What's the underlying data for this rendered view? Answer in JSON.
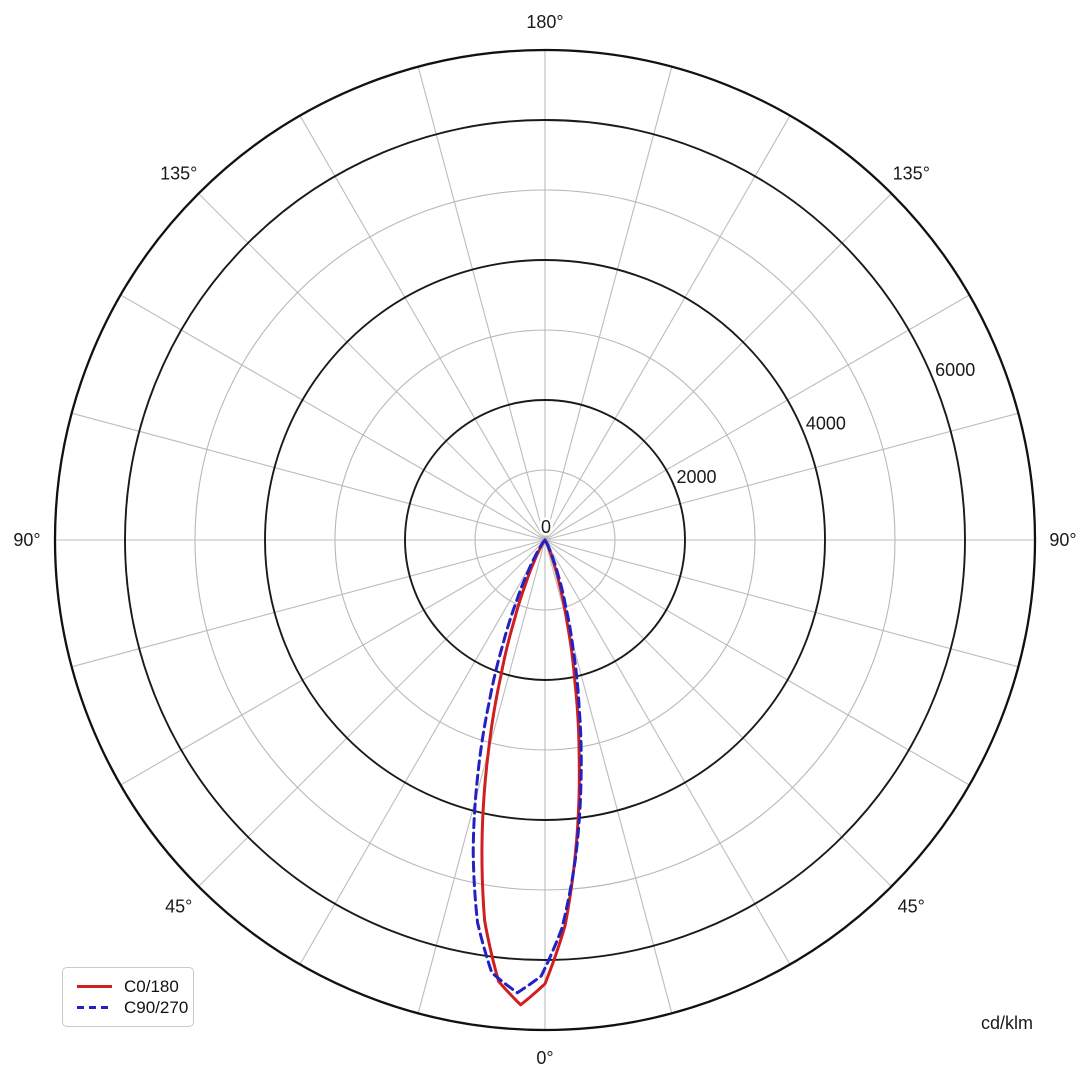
{
  "units_label": "cd/klm",
  "legend": {
    "items": [
      {
        "label": "C0/180",
        "style": "solid"
      },
      {
        "label": "C90/270",
        "style": "dashed"
      }
    ]
  },
  "chart_data": {
    "type": "line",
    "subtype": "polar-photometric",
    "title": "",
    "units_label": "cd/klm",
    "zero_direction": "down",
    "angle_grid_step_deg": 15,
    "r_max": 7000,
    "r_minor_step": 1000,
    "r_major_step": 2000,
    "grid": true,
    "legend_position": "bottom-left",
    "angle_ticks": [
      {
        "deg": 0,
        "label": "0°"
      },
      {
        "deg": 45,
        "label": "45°"
      },
      {
        "deg": -45,
        "label": "45°"
      },
      {
        "deg": 90,
        "label": "90°"
      },
      {
        "deg": -90,
        "label": "90°"
      },
      {
        "deg": 135,
        "label": "135°"
      },
      {
        "deg": -135,
        "label": "135°"
      },
      {
        "deg": 180,
        "label": "180°"
      }
    ],
    "r_ticks": [
      {
        "value": 0,
        "label": "0"
      },
      {
        "value": 2000,
        "label": "2000"
      },
      {
        "value": 4000,
        "label": "4000"
      },
      {
        "value": 6000,
        "label": "6000"
      }
    ],
    "series": [
      {
        "name": "C0/180",
        "color": "#d01f1f",
        "line_style": "solid",
        "points": [
          [
            -90,
            0
          ],
          [
            -50,
            0
          ],
          [
            -43,
            2
          ],
          [
            -38,
            13
          ],
          [
            -33,
            60
          ],
          [
            -30,
            145
          ],
          [
            -27,
            325
          ],
          [
            -24,
            660
          ],
          [
            -21,
            1215
          ],
          [
            -18,
            2040
          ],
          [
            -15,
            3120
          ],
          [
            -12,
            4320
          ],
          [
            -9,
            5510
          ],
          [
            -6,
            6340
          ],
          [
            -3,
            6650
          ],
          [
            0,
            6340
          ],
          [
            3,
            5510
          ],
          [
            6,
            4320
          ],
          [
            9,
            3120
          ],
          [
            12,
            2040
          ],
          [
            15,
            1215
          ],
          [
            18,
            660
          ],
          [
            21,
            325
          ],
          [
            24,
            145
          ],
          [
            27,
            60
          ],
          [
            32,
            13
          ],
          [
            37,
            2
          ],
          [
            44,
            0
          ],
          [
            90,
            0
          ]
        ]
      },
      {
        "name": "C90/270",
        "color": "#2121c4",
        "line_style": "dashed",
        "points": [
          [
            -90,
            0
          ],
          [
            -52,
            0
          ],
          [
            -46,
            2
          ],
          [
            -42,
            6
          ],
          [
            -39,
            33
          ],
          [
            -34,
            130
          ],
          [
            -31,
            280
          ],
          [
            -28,
            540
          ],
          [
            -25,
            960
          ],
          [
            -22,
            1600
          ],
          [
            -19,
            2450
          ],
          [
            -16,
            3480
          ],
          [
            -13,
            4560
          ],
          [
            -10,
            5550
          ],
          [
            -7,
            6230
          ],
          [
            -3.5,
            6480
          ],
          [
            -0.5,
            6230
          ],
          [
            2.5,
            5550
          ],
          [
            5.5,
            4560
          ],
          [
            8.5,
            3480
          ],
          [
            11.5,
            2450
          ],
          [
            14.5,
            1600
          ],
          [
            17.5,
            960
          ],
          [
            20.5,
            540
          ],
          [
            23.5,
            280
          ],
          [
            26.5,
            130
          ],
          [
            31.5,
            33
          ],
          [
            36.5,
            6
          ],
          [
            45,
            0
          ],
          [
            90,
            0
          ]
        ]
      }
    ],
    "style": {
      "outer_ring_color": "#111111",
      "major_ring_color": "#1a1a1a",
      "minor_ring_color": "#b8b8b8",
      "spoke_color": "#bcbcbc",
      "label_color": "#1a1a1a"
    }
  }
}
